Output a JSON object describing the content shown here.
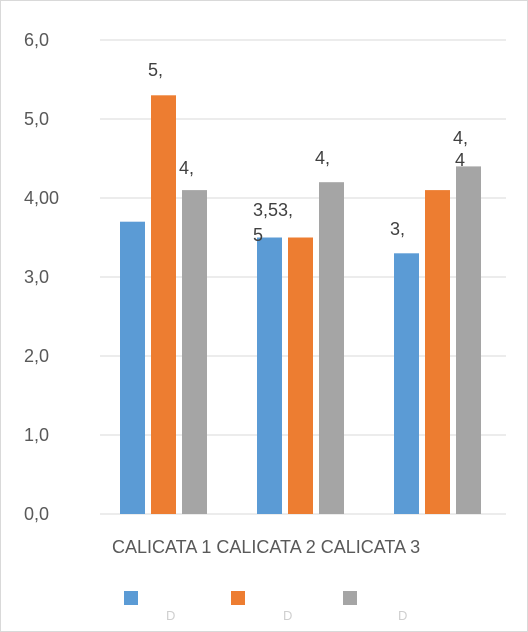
{
  "chart_data": {
    "type": "bar",
    "categories": [
      "CALICATA 1",
      "CALICATA 2",
      "CALICATA 3"
    ],
    "category_axis_text": "CALICATA 1 CALICATA 2 CALICATA 3",
    "ylim": [
      0,
      6
    ],
    "yticks": [
      "0,0",
      "1,0",
      "2,0",
      "3,0",
      "4,00",
      "5,0",
      "6,0"
    ],
    "grid": true,
    "legend_position": "bottom",
    "colors": [
      "#5b9bd5",
      "#ed7d31",
      "#a5a5a5"
    ],
    "series": [
      {
        "values": [
          3.7,
          3.5,
          3.3
        ],
        "labels": [
          "",
          "3,53,",
          "3,"
        ]
      },
      {
        "values": [
          5.3,
          3.5,
          4.1
        ],
        "labels": [
          "5,",
          "",
          ""
        ]
      },
      {
        "values": [
          4.1,
          4.2,
          4.4
        ],
        "labels": [
          "4,",
          "4,",
          "4,"
        ]
      }
    ],
    "extra_labels": [
      "5",
      "4"
    ],
    "legend_fragments": [
      "D",
      "D",
      "D"
    ]
  }
}
